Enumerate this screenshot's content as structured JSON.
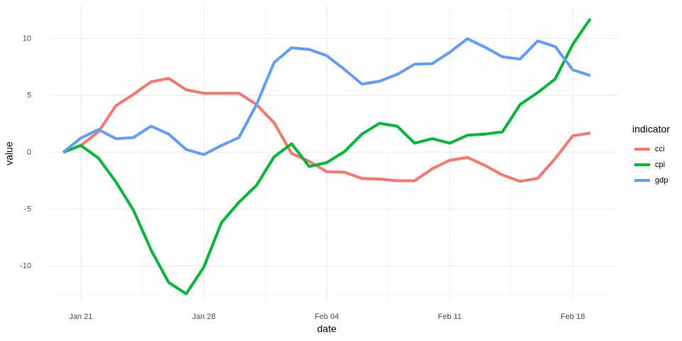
{
  "chart_data": {
    "type": "line",
    "x_label": "date",
    "y_label": "value",
    "categories": [
      null,
      "Jan 21",
      null,
      null,
      null,
      null,
      null,
      null,
      "Jan 28",
      null,
      null,
      null,
      null,
      null,
      null,
      "Feb 04",
      null,
      null,
      null,
      null,
      null,
      null,
      "Feb 11",
      null,
      null,
      null,
      null,
      null,
      null,
      "Feb 18",
      null
    ],
    "series": [
      {
        "name": "cci",
        "color": "#f8766d",
        "values": [
          0,
          0.6,
          1.8,
          4.1,
          5.1,
          6.2,
          6.5,
          5.5,
          5.2,
          5.2,
          5.2,
          4.2,
          2.6,
          -0.1,
          -0.8,
          -1.7,
          -1.75,
          -2.3,
          -2.35,
          -2.5,
          -2.5,
          -1.45,
          -0.7,
          -0.45,
          -1.15,
          -2.0,
          -2.55,
          -2.3,
          -0.55,
          1.45,
          1.7
        ]
      },
      {
        "name": "cpi",
        "color": "#00ba38",
        "values": [
          0,
          0.6,
          -0.5,
          -2.6,
          -5.1,
          -8.6,
          -11.45,
          -12.45,
          -10.1,
          -6.2,
          -4.4,
          -2.9,
          -0.4,
          0.75,
          -1.25,
          -0.9,
          0.05,
          1.6,
          2.55,
          2.3,
          0.8,
          1.2,
          0.8,
          1.5,
          1.6,
          1.8,
          4.2,
          5.25,
          6.45,
          9.5,
          11.75
        ]
      },
      {
        "name": "gdp",
        "color": "#619cff",
        "values": [
          0,
          1.25,
          2.0,
          1.2,
          1.3,
          2.3,
          1.6,
          0.25,
          -0.2,
          0.6,
          1.3,
          4.2,
          7.9,
          9.2,
          9.05,
          8.5,
          7.3,
          6.0,
          6.25,
          6.85,
          7.75,
          7.8,
          8.8,
          10.0,
          9.25,
          8.4,
          8.2,
          9.8,
          9.3,
          7.25,
          6.75
        ]
      }
    ],
    "legend_title": "indicator",
    "ylim": [
      -13.1,
      12.9
    ],
    "yticks": [
      -10,
      -5,
      0,
      5,
      10
    ],
    "grid": true
  }
}
